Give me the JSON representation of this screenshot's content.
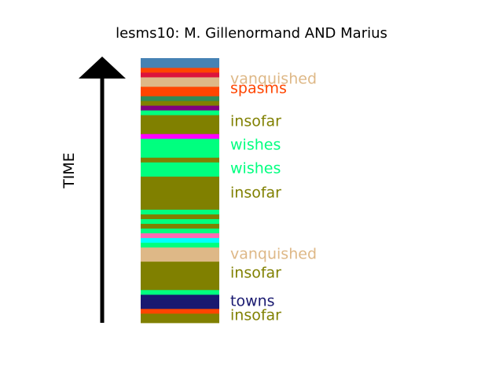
{
  "chart_data": {
    "type": "bar",
    "title": "lesms10: M. Gillenormand AND Marius",
    "ylabel": "TIME",
    "ylim": [
      0,
      56
    ],
    "segments": [
      {
        "c": "#808000"
      },
      {
        "c": "#808000"
      },
      {
        "c": "#ff4500"
      },
      {
        "c": "#191970"
      },
      {
        "c": "#191970"
      },
      {
        "c": "#191970"
      },
      {
        "c": "#00ff7f"
      },
      {
        "c": "#808000"
      },
      {
        "c": "#808000"
      },
      {
        "c": "#808000"
      },
      {
        "c": "#808000"
      },
      {
        "c": "#808000"
      },
      {
        "c": "#808000"
      },
      {
        "c": "#deb887"
      },
      {
        "c": "#deb887"
      },
      {
        "c": "#deb887"
      },
      {
        "c": "#00ff7f"
      },
      {
        "c": "#00ffff"
      },
      {
        "c": "#ff69b4"
      },
      {
        "c": "#00ff7f"
      },
      {
        "c": "#808000"
      },
      {
        "c": "#00ff7f"
      },
      {
        "c": "#808000"
      },
      {
        "c": "#00ff7f"
      },
      {
        "c": "#808000"
      },
      {
        "c": "#808000"
      },
      {
        "c": "#808000"
      },
      {
        "c": "#808000"
      },
      {
        "c": "#808000"
      },
      {
        "c": "#808000"
      },
      {
        "c": "#808000"
      },
      {
        "c": "#00ff7f"
      },
      {
        "c": "#00ff7f"
      },
      {
        "c": "#00ff7f"
      },
      {
        "c": "#808000"
      },
      {
        "c": "#00ff7f"
      },
      {
        "c": "#00ff7f"
      },
      {
        "c": "#00ff7f"
      },
      {
        "c": "#00ff7f"
      },
      {
        "c": "#ff00ff"
      },
      {
        "c": "#808000"
      },
      {
        "c": "#808000"
      },
      {
        "c": "#808000"
      },
      {
        "c": "#808000"
      },
      {
        "c": "#00ff7f"
      },
      {
        "c": "#800080"
      },
      {
        "c": "#808000"
      },
      {
        "c": "#2e8b57"
      },
      {
        "c": "#ff4500"
      },
      {
        "c": "#ff4500"
      },
      {
        "c": "#deb887"
      },
      {
        "c": "#deb887"
      },
      {
        "c": "#dc143c"
      },
      {
        "c": "#ff4500"
      },
      {
        "c": "#4682b4"
      },
      {
        "c": "#4682b4"
      }
    ],
    "labels": [
      {
        "text": "insofar",
        "color": "#808000",
        "t": 1.5
      },
      {
        "text": "towns",
        "color": "#191970",
        "t": 4.5
      },
      {
        "text": "insofar",
        "color": "#808000",
        "t": 10.5
      },
      {
        "text": "vanquished",
        "color": "#deb887",
        "t": 14.5
      },
      {
        "text": "insofar",
        "color": "#808000",
        "t": 27.5
      },
      {
        "text": "wishes",
        "color": "#00ff7f",
        "t": 32.5
      },
      {
        "text": "wishes",
        "color": "#00ff7f",
        "t": 37.5
      },
      {
        "text": "insofar",
        "color": "#808000",
        "t": 42.5
      },
      {
        "text": "spasms",
        "color": "#ff4500",
        "t": 49.5
      },
      {
        "text": "vanquished",
        "color": "#deb887",
        "t": 51.5
      }
    ]
  }
}
